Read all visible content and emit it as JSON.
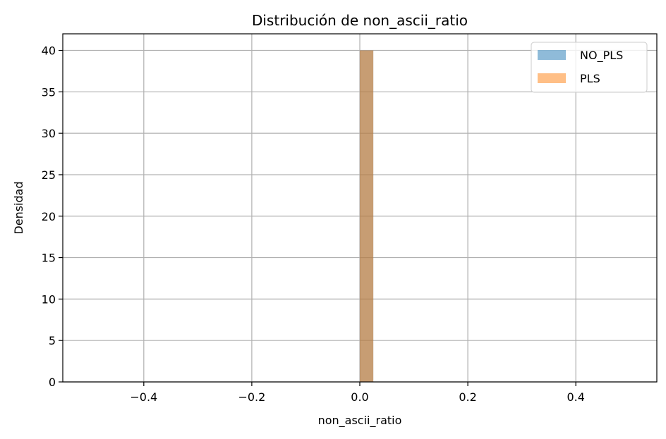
{
  "chart_data": {
    "type": "bar",
    "title": "Distribución de non_ascii_ratio",
    "xlabel": "non_ascii_ratio",
    "ylabel": "Densidad",
    "xlim": [
      -0.55,
      0.55
    ],
    "ylim": [
      0,
      42
    ],
    "xticks": [
      -0.4,
      -0.2,
      0.0,
      0.2,
      0.4
    ],
    "xtick_labels": [
      "−0.4",
      "−0.2",
      "0.0",
      "0.2",
      "0.4"
    ],
    "yticks": [
      0,
      5,
      10,
      15,
      20,
      25,
      30,
      35,
      40
    ],
    "ytick_labels": [
      "0",
      "5",
      "10",
      "15",
      "20",
      "25",
      "30",
      "35",
      "40"
    ],
    "grid": true,
    "legend_position": "top-right",
    "series": [
      {
        "name": "NO_PLS",
        "color": "#1f77b4",
        "alpha": 0.5,
        "bins": [
          {
            "x0": 0.0,
            "x1": 0.025,
            "value": 40
          }
        ]
      },
      {
        "name": "PLS",
        "color": "#ff7f0e",
        "alpha": 0.5,
        "bins": [
          {
            "x0": 0.0,
            "x1": 0.025,
            "value": 40
          }
        ]
      }
    ]
  }
}
